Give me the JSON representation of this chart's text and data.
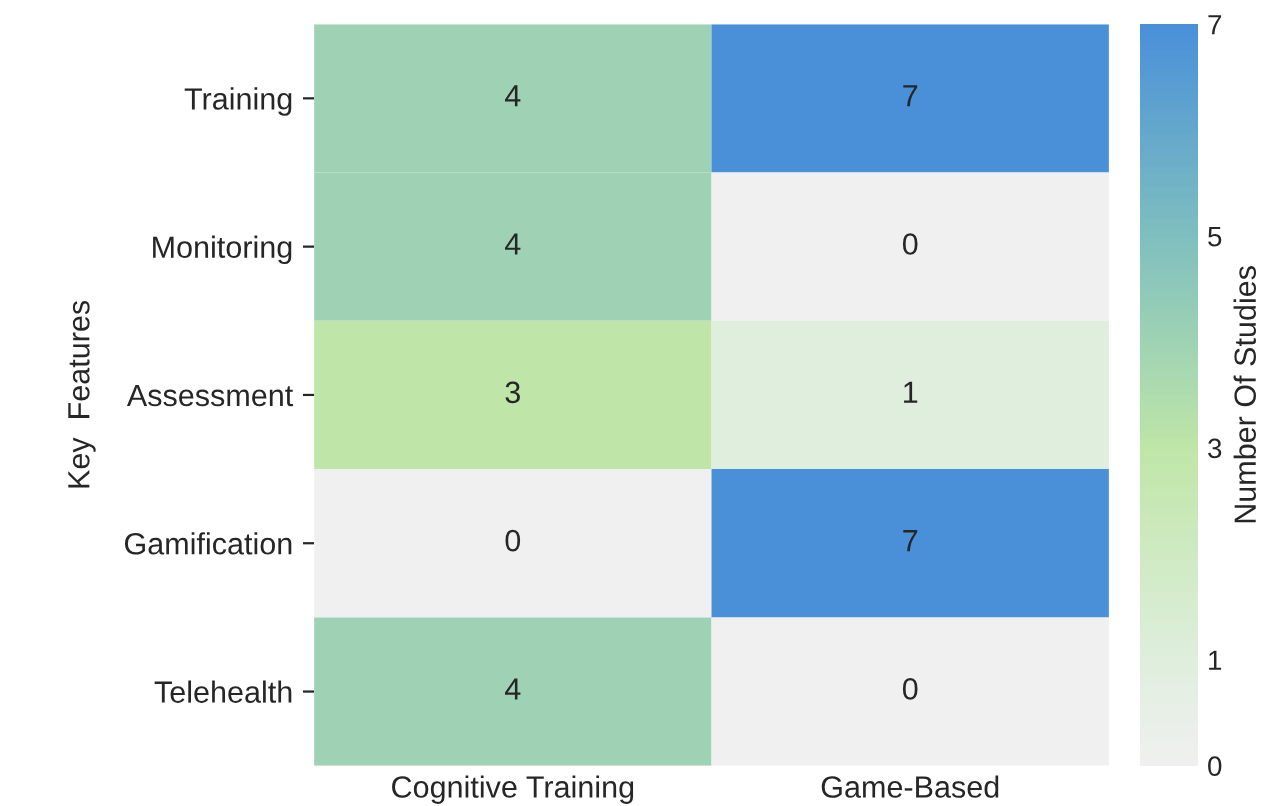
{
  "chart_data": {
    "type": "heatmap",
    "xlabel": null,
    "ylabel": "Key  Features",
    "clabel": "Number Of Studies",
    "categories": [
      "Cognitive Training",
      "Game-Based"
    ],
    "y_categories": [
      "Training",
      "Monitoring",
      "Assessment",
      "Gamification",
      "Telehealth"
    ],
    "cells": [
      [
        4,
        7
      ],
      [
        4,
        0
      ],
      [
        3,
        1
      ],
      [
        0,
        7
      ],
      [
        4,
        0
      ]
    ],
    "data_labels": true,
    "clim": [
      0,
      7
    ],
    "cticks": [
      0,
      1,
      3,
      5,
      7
    ],
    "colors": [
      "#f0f0f0",
      "#dfeedd",
      "#bfe6a8",
      "#7fbfbf",
      "#4a90d9"
    ]
  }
}
